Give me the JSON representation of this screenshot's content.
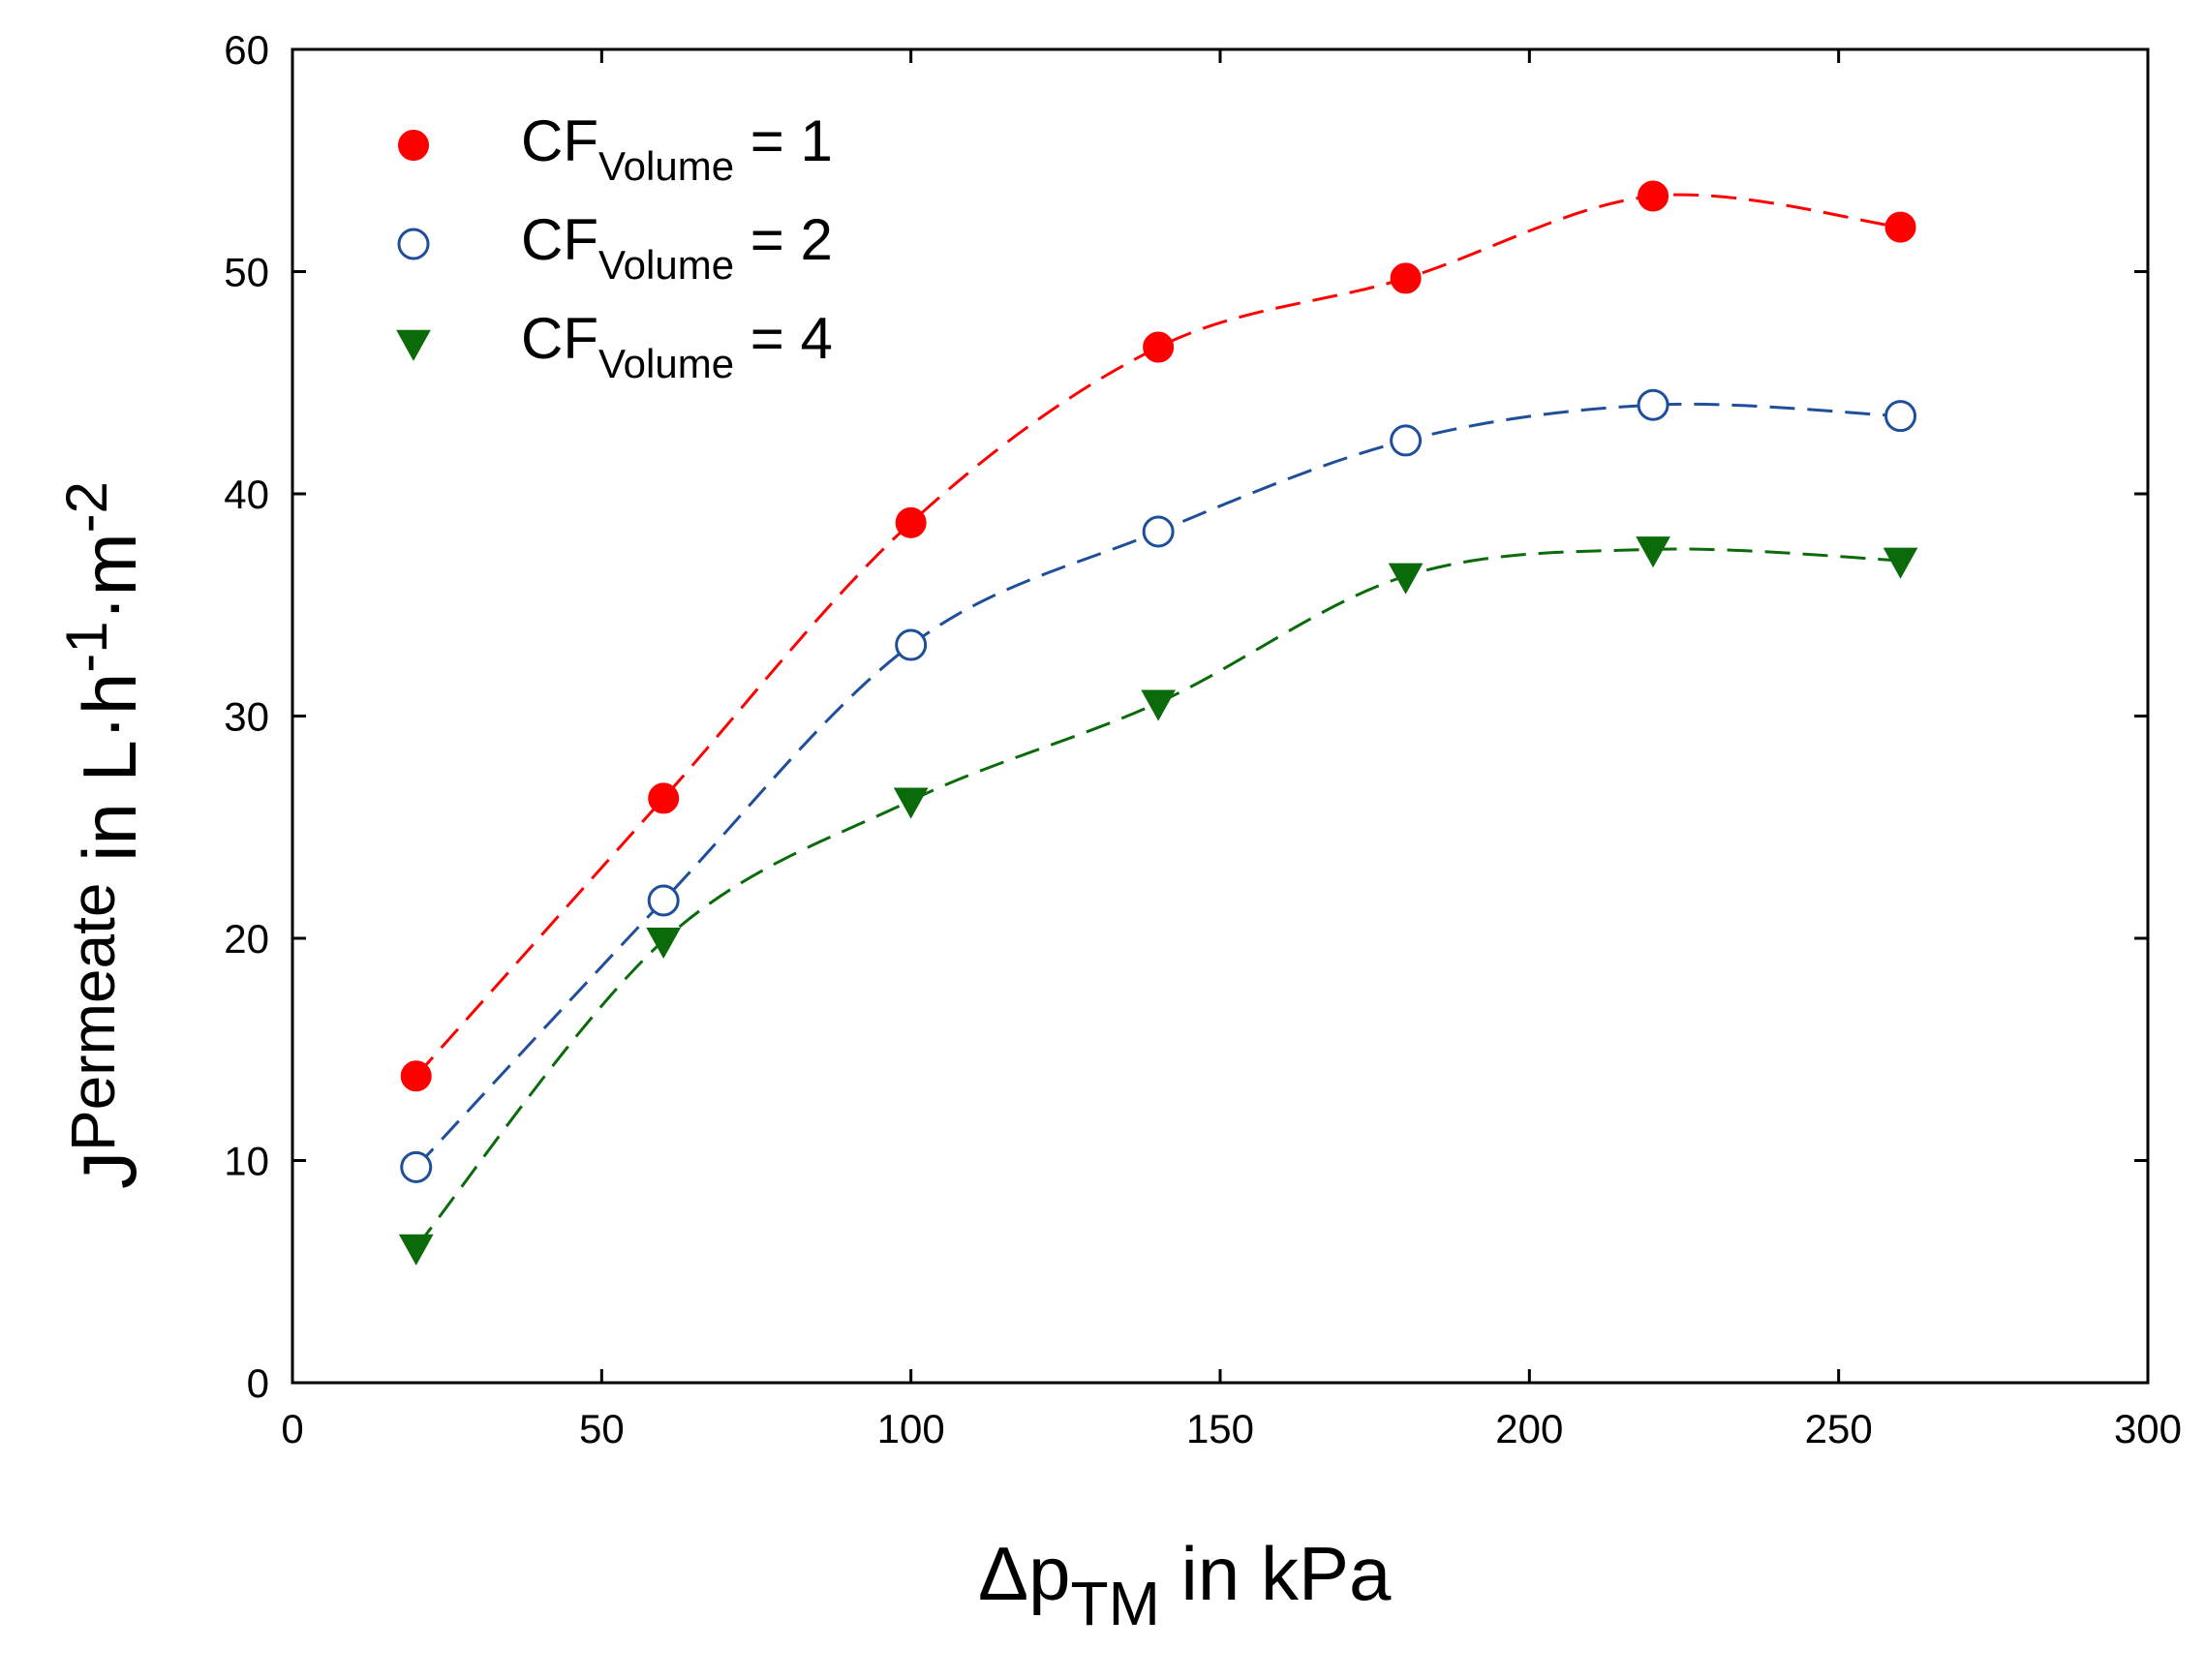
{
  "chart_data": {
    "type": "line",
    "xlabel": {
      "base": "Δp",
      "sub": "TM",
      "rest": " in kPa"
    },
    "ylabel": {
      "base": "J",
      "sub": "Permeate",
      "rest": " in L·h",
      "sup1": "-1",
      "mid": "·m",
      "sup2": "-2"
    },
    "xlim": [
      0,
      300
    ],
    "ylim": [
      0,
      60
    ],
    "xticks": [
      "0",
      "50",
      "100",
      "150",
      "200",
      "250",
      "300"
    ],
    "yticks": [
      "0",
      "10",
      "20",
      "30",
      "40",
      "50",
      "60"
    ],
    "grid": false,
    "legend_position": "top-left",
    "x": [
      20,
      60,
      100,
      140,
      180,
      220,
      260
    ],
    "series": [
      {
        "name": "CF_Volume = 1",
        "legend": {
          "base": "CF",
          "sub": "Volume",
          "rest": " = 1"
        },
        "marker": "filled-circle",
        "marker_color": "#ff0000",
        "line_color": "#ff0000",
        "values": [
          13.8,
          26.3,
          38.7,
          46.6,
          49.7,
          53.4,
          52.0
        ]
      },
      {
        "name": "CF_Volume = 2",
        "legend": {
          "base": "CF",
          "sub": "Volume",
          "rest": " = 2"
        },
        "marker": "open-circle",
        "marker_color": "#1f4e9a",
        "line_color": "#1f4e9a",
        "values": [
          9.7,
          21.7,
          33.2,
          38.3,
          42.4,
          44.0,
          43.5
        ]
      },
      {
        "name": "CF_Volume = 4",
        "legend": {
          "base": "CF",
          "sub": "Volume",
          "rest": " = 4"
        },
        "marker": "filled-triangle-down",
        "marker_color": "#0b6b0b",
        "line_color": "#0b6b0b",
        "values": [
          6.1,
          19.9,
          26.2,
          30.6,
          36.3,
          37.5,
          37.0
        ]
      }
    ]
  }
}
